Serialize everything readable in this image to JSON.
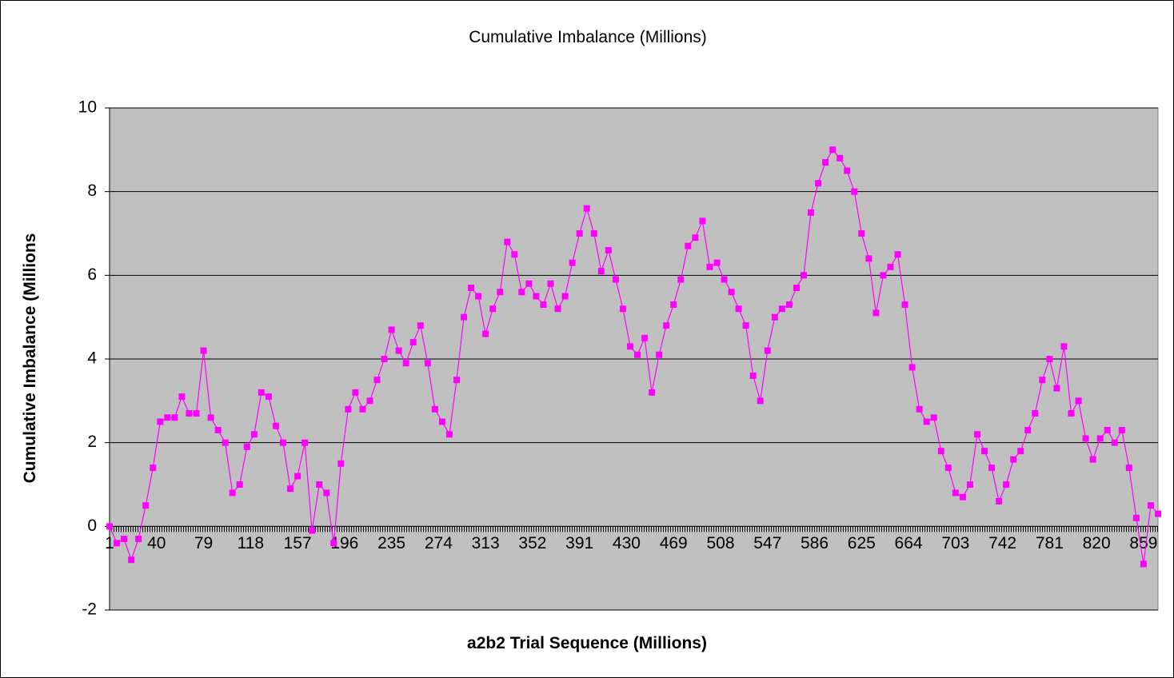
{
  "chart_data": {
    "type": "line",
    "title": "Cumulative Imbalance (Millions)",
    "x_label": "a2b2 Trial Sequence (Millions)",
    "y_label": "Cumulative Imbalance (Millions",
    "x": [
      1,
      7,
      13,
      19,
      25,
      31,
      37,
      43,
      49,
      55,
      61,
      67,
      73,
      79,
      85,
      91,
      97,
      103,
      109,
      115,
      121,
      127,
      133,
      139,
      145,
      151,
      157,
      163,
      169,
      175,
      181,
      187,
      193,
      199,
      205,
      211,
      217,
      223,
      229,
      235,
      241,
      247,
      253,
      259,
      265,
      271,
      277,
      283,
      289,
      295,
      301,
      307,
      313,
      319,
      325,
      331,
      337,
      343,
      349,
      355,
      361,
      367,
      373,
      379,
      385,
      391,
      397,
      403,
      409,
      415,
      421,
      427,
      433,
      439,
      445,
      451,
      457,
      463,
      469,
      475,
      481,
      487,
      493,
      499,
      505,
      511,
      517,
      523,
      529,
      535,
      541,
      547,
      553,
      559,
      565,
      571,
      577,
      583,
      589,
      595,
      601,
      607,
      613,
      619,
      625,
      631,
      637,
      643,
      649,
      655,
      661,
      667,
      673,
      679,
      685,
      691,
      697,
      703,
      709,
      715,
      721,
      727,
      733,
      739,
      745,
      751,
      757,
      763,
      769,
      775,
      781,
      787,
      793,
      799,
      805,
      811,
      817,
      823,
      829,
      835,
      841,
      847,
      853,
      859,
      865,
      871
    ],
    "series": [
      {
        "name": "Cumulative Imbalance",
        "color": "#ff00ff",
        "values": [
          0,
          -0.4,
          -0.3,
          -0.8,
          -0.3,
          0.5,
          1.4,
          2.5,
          2.6,
          2.6,
          3.1,
          2.7,
          2.7,
          4.2,
          2.6,
          2.3,
          2.0,
          0.8,
          1.0,
          1.9,
          2.2,
          3.2,
          3.1,
          2.4,
          2.0,
          0.9,
          1.2,
          2.0,
          -0.1,
          1.0,
          0.8,
          -0.4,
          1.5,
          2.8,
          3.2,
          2.8,
          3.0,
          3.5,
          4.0,
          4.7,
          4.2,
          3.9,
          4.4,
          4.8,
          3.9,
          2.8,
          2.5,
          2.2,
          3.5,
          5.0,
          5.7,
          5.5,
          4.6,
          5.2,
          5.6,
          6.8,
          6.5,
          5.6,
          5.8,
          5.5,
          5.3,
          5.8,
          5.2,
          5.5,
          6.3,
          7.0,
          7.6,
          7.0,
          6.1,
          6.6,
          5.9,
          5.2,
          4.3,
          4.1,
          4.5,
          3.2,
          4.1,
          4.8,
          5.3,
          5.9,
          6.7,
          6.9,
          7.3,
          6.2,
          6.3,
          5.9,
          5.6,
          5.2,
          4.8,
          3.6,
          3.0,
          4.2,
          5.0,
          5.2,
          5.3,
          5.7,
          6.0,
          7.5,
          8.2,
          8.7,
          9.0,
          8.8,
          8.5,
          8.0,
          7.0,
          6.4,
          5.1,
          6.0,
          6.2,
          6.5,
          5.3,
          3.8,
          2.8,
          2.5,
          2.6,
          1.8,
          1.4,
          0.8,
          0.7,
          1.0,
          2.2,
          1.8,
          1.4,
          0.6,
          1.0,
          1.6,
          1.8,
          2.3,
          2.7,
          3.5,
          4.0,
          3.3,
          4.3,
          2.7,
          3.0,
          2.1,
          1.6,
          2.1,
          2.3,
          2.0,
          2.3,
          1.4,
          0.2,
          -0.9,
          0.5,
          0.3
        ]
      }
    ],
    "xlim": [
      1,
      871
    ],
    "xticks": [
      1,
      40,
      79,
      118,
      157,
      196,
      235,
      274,
      313,
      352,
      391,
      430,
      469,
      508,
      547,
      586,
      625,
      664,
      703,
      742,
      781,
      820,
      859
    ],
    "ylim": [
      -2,
      10
    ],
    "yticks": [
      -2,
      0,
      2,
      4,
      6,
      8,
      10
    ],
    "grid": true,
    "plot_background": "#c0c0c0"
  }
}
